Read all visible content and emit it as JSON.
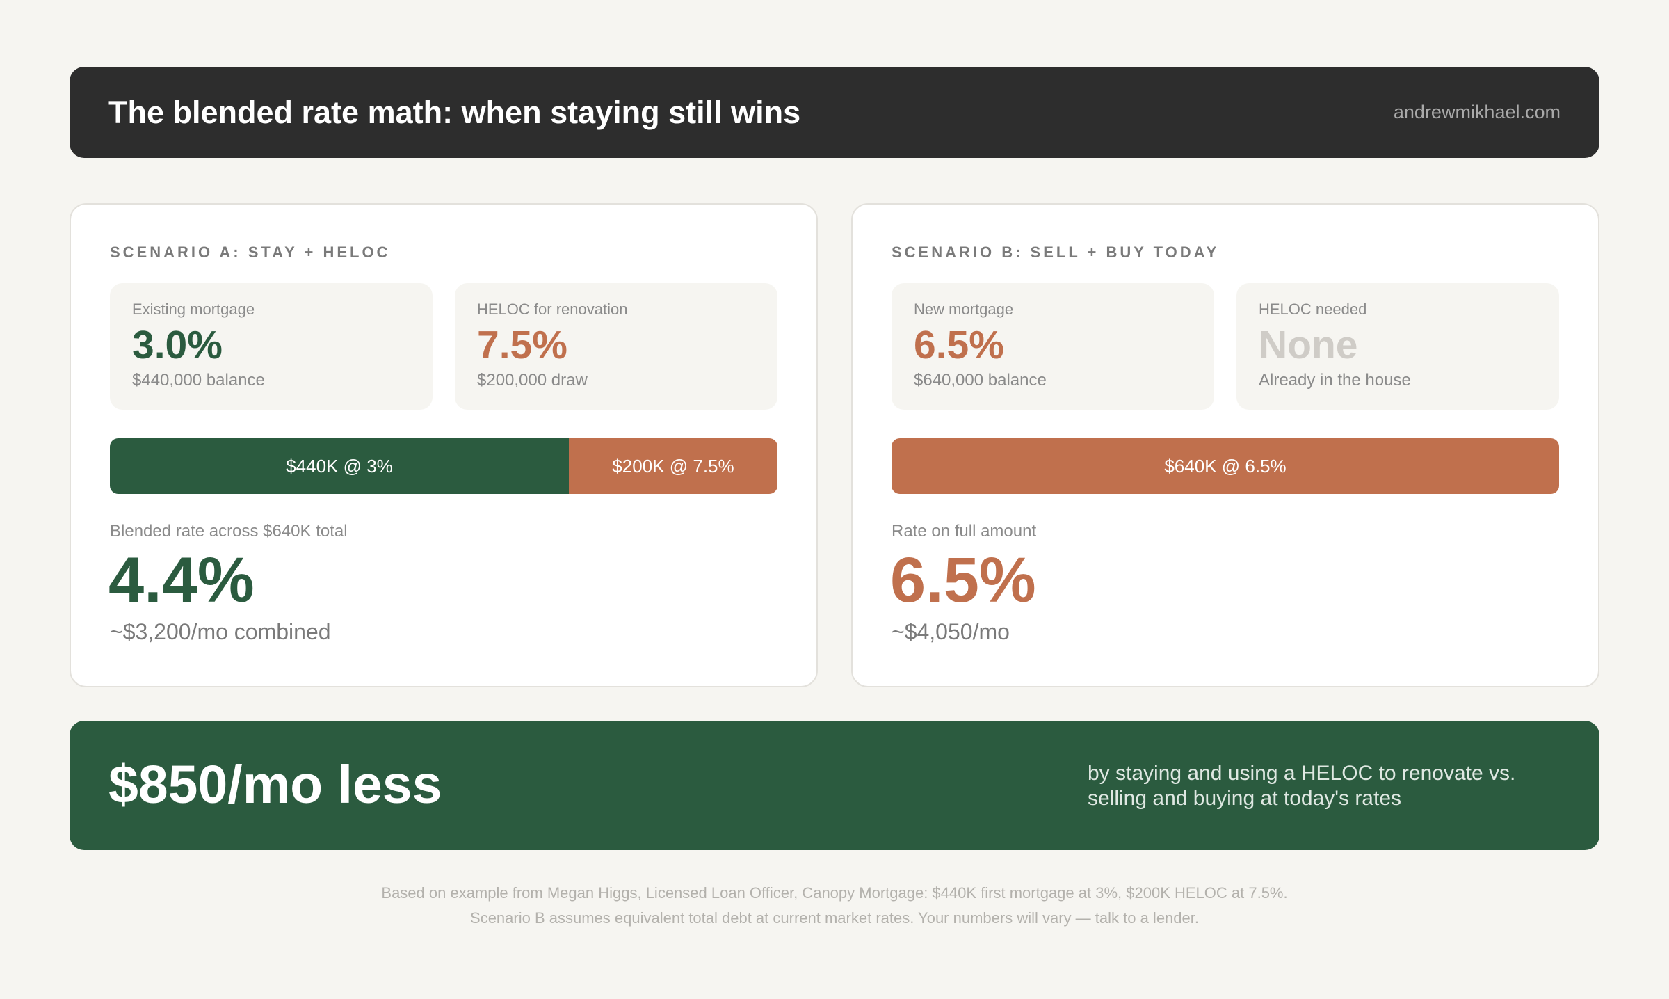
{
  "header": {
    "title": "The blended rate math: when staying still wins",
    "site": "andrewmikhael.com"
  },
  "scenario_a": {
    "label": "SCENARIO A: STAY + HELOC",
    "boxes": [
      {
        "label": "Existing mortgage",
        "value": "3.0%",
        "sub": "$440,000 balance"
      },
      {
        "label": "HELOC for renovation",
        "value": "7.5%",
        "sub": "$200,000 draw"
      }
    ],
    "bar": [
      {
        "label": "$440K @ 3%",
        "amount_k": 440
      },
      {
        "label": "$200K @ 7.5%",
        "amount_k": 200
      }
    ],
    "rate_label": "Blended rate across $640K total",
    "rate_value": "4.4%",
    "rate_sub": "~$3,200/mo combined"
  },
  "scenario_b": {
    "label": "SCENARIO B: SELL + BUY TODAY",
    "boxes": [
      {
        "label": "New mortgage",
        "value": "6.5%",
        "sub": "$640,000 balance"
      },
      {
        "label": "HELOC needed",
        "value": "None",
        "sub": "Already in the house"
      }
    ],
    "bar": [
      {
        "label": "$640K @ 6.5%",
        "amount_k": 640
      }
    ],
    "rate_label": "Rate on full amount",
    "rate_value": "6.5%",
    "rate_sub": "~$4,050/mo"
  },
  "banner": {
    "headline": "$850/mo less",
    "text": "by staying and using a HELOC to renovate vs. selling and buying at today's rates"
  },
  "footnote": {
    "line1": "Based on example from Megan Higgs, Licensed Loan Officer, Canopy Mortgage: $440K first mortgage at 3%, $200K HELOC at 7.5%.",
    "line2": "Scenario B assumes equivalent total debt at current market rates. Your numbers will vary — talk to a lender."
  },
  "colors": {
    "header_bg": "#2d2d2d",
    "green": "#2b5b3f",
    "orange": "#c0704d",
    "background": "#f6f5f1"
  }
}
